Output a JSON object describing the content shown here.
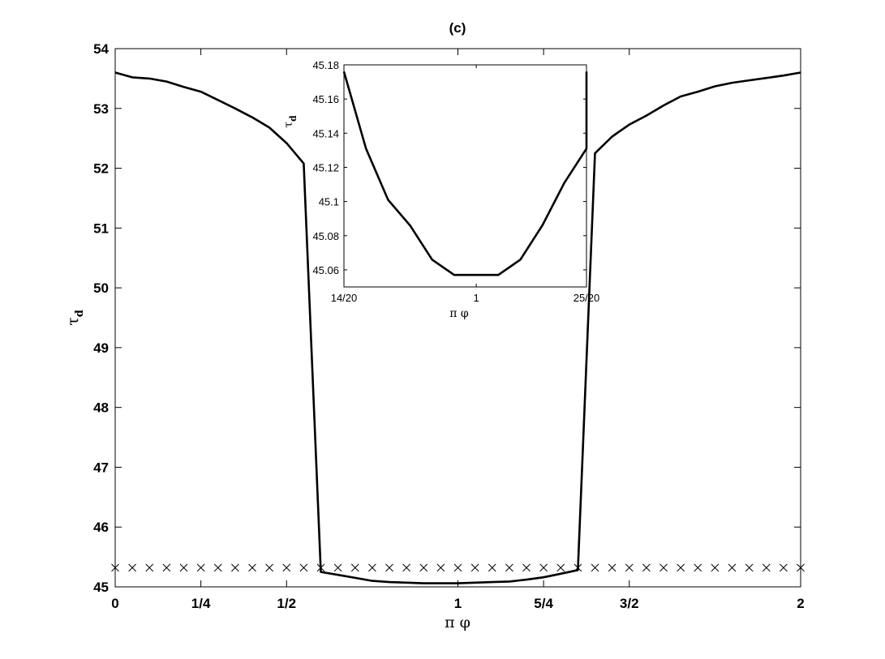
{
  "chart_data": [
    {
      "type": "line",
      "title": "(c)",
      "xlabel": "π φ",
      "ylabel": "τ",
      "ylabel_sub": "d",
      "xlim": [
        0,
        2
      ],
      "ylim": [
        45,
        54
      ],
      "xticks": [
        {
          "value": 0,
          "label": "0"
        },
        {
          "value": 0.25,
          "label": "1/4"
        },
        {
          "value": 0.5,
          "label": "1/2"
        },
        {
          "value": 1,
          "label": "1"
        },
        {
          "value": 1.25,
          "label": "5/4"
        },
        {
          "value": 1.5,
          "label": "3/2"
        },
        {
          "value": 2,
          "label": "2"
        }
      ],
      "yticks": [
        {
          "value": 45,
          "label": "45"
        },
        {
          "value": 46,
          "label": "46"
        },
        {
          "value": 47,
          "label": "47"
        },
        {
          "value": 48,
          "label": "48"
        },
        {
          "value": 49,
          "label": "49"
        },
        {
          "value": 50,
          "label": "50"
        },
        {
          "value": 51,
          "label": "51"
        },
        {
          "value": 52,
          "label": "52"
        },
        {
          "value": 53,
          "label": "53"
        },
        {
          "value": 54,
          "label": "54"
        }
      ],
      "grid": false,
      "series": [
        {
          "style": "solid",
          "color": "#000000",
          "x": [
            0,
            0.05,
            0.1,
            0.15,
            0.2,
            0.25,
            0.3,
            0.35,
            0.4,
            0.45,
            0.5,
            0.55,
            0.6,
            0.65,
            0.7,
            0.75,
            0.8,
            0.85,
            0.9,
            0.95,
            1.0,
            1.05,
            1.1,
            1.15,
            1.2,
            1.25,
            1.3,
            1.35,
            1.4,
            1.45,
            1.5,
            1.55,
            1.6,
            1.65,
            1.7,
            1.75,
            1.8,
            1.85,
            1.9,
            1.95,
            2.0
          ],
          "y": [
            53.6,
            53.52,
            53.5,
            53.45,
            53.36,
            53.28,
            53.14,
            53.0,
            52.85,
            52.68,
            52.42,
            52.08,
            45.25,
            45.2,
            45.15,
            45.1,
            45.08,
            45.07,
            45.06,
            45.06,
            45.06,
            45.07,
            45.08,
            45.09,
            45.12,
            45.16,
            45.22,
            45.28,
            52.25,
            52.53,
            52.73,
            52.88,
            53.05,
            53.2,
            53.28,
            53.37,
            53.43,
            53.47,
            53.51,
            53.55,
            53.6
          ]
        },
        {
          "style": "markers",
          "marker": "x",
          "color": "#000000",
          "x": [
            0,
            0.05,
            0.1,
            0.15,
            0.2,
            0.25,
            0.3,
            0.35,
            0.4,
            0.45,
            0.5,
            0.55,
            0.6,
            0.65,
            0.7,
            0.75,
            0.8,
            0.85,
            0.9,
            0.95,
            1.0,
            1.05,
            1.1,
            1.15,
            1.2,
            1.25,
            1.3,
            1.35,
            1.4,
            1.45,
            1.5,
            1.55,
            1.6,
            1.65,
            1.7,
            1.75,
            1.8,
            1.85,
            1.9,
            1.95,
            2.0
          ],
          "y": [
            45.32,
            45.32,
            45.32,
            45.32,
            45.32,
            45.32,
            45.32,
            45.32,
            45.32,
            45.32,
            45.32,
            45.32,
            45.32,
            45.32,
            45.32,
            45.32,
            45.32,
            45.32,
            45.32,
            45.32,
            45.32,
            45.32,
            45.32,
            45.32,
            45.32,
            45.32,
            45.32,
            45.32,
            45.32,
            45.32,
            45.32,
            45.32,
            45.32,
            45.32,
            45.32,
            45.32,
            45.32,
            45.32,
            45.32,
            45.32,
            45.32
          ]
        }
      ]
    },
    {
      "type": "line",
      "xlabel": "π φ",
      "ylabel": "τ",
      "ylabel_sub": "d",
      "xlim": [
        0.7,
        1.25
      ],
      "ylim": [
        45.05,
        45.18
      ],
      "xticks": [
        {
          "value": 0.7,
          "label": "14/20"
        },
        {
          "value": 1.0,
          "label": "1"
        },
        {
          "value": 1.25,
          "label": "25/20"
        }
      ],
      "yticks": [
        {
          "value": 45.06,
          "label": "45.06"
        },
        {
          "value": 45.08,
          "label": "45.08"
        },
        {
          "value": 45.1,
          "label": "45.1"
        },
        {
          "value": 45.12,
          "label": "45.12"
        },
        {
          "value": 45.14,
          "label": "45.14"
        },
        {
          "value": 45.16,
          "label": "45.16"
        },
        {
          "value": 45.18,
          "label": "45.18"
        }
      ],
      "grid": false,
      "series": [
        {
          "style": "solid",
          "color": "#000000",
          "x": [
            0.7,
            0.75,
            0.8,
            0.85,
            0.9,
            0.95,
            1.0,
            1.05,
            1.1,
            1.15,
            1.2,
            1.25
          ],
          "y": [
            45.176,
            45.131,
            45.101,
            45.086,
            45.066,
            45.057,
            45.057,
            45.057,
            45.066,
            45.086,
            45.111,
            45.131
          ]
        }
      ],
      "series_tail": {
        "x": 1.25,
        "y": 45.176
      }
    }
  ]
}
